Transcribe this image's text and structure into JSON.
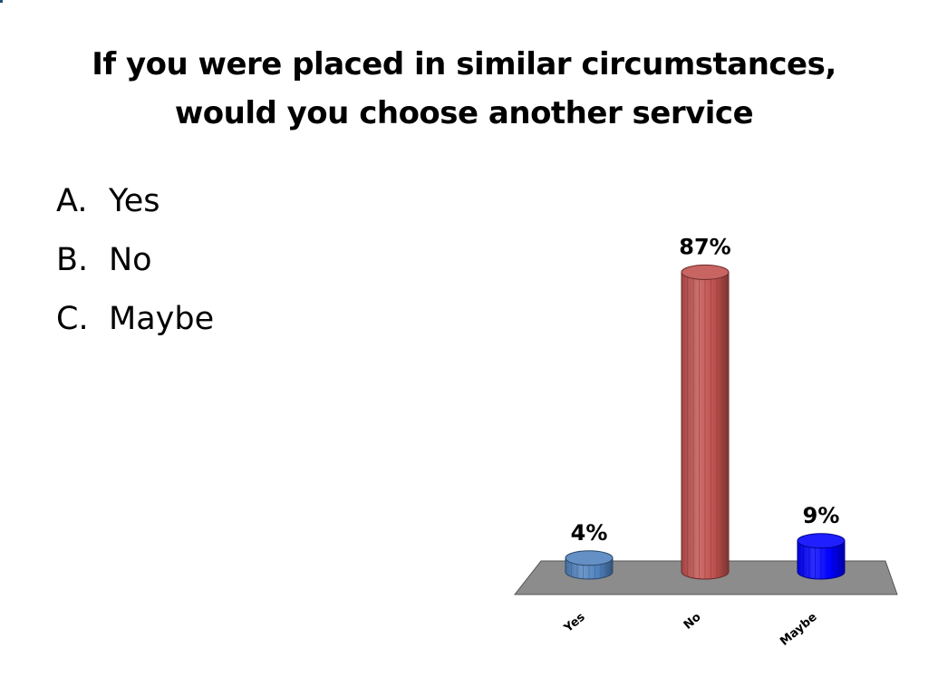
{
  "slide": {
    "title_line1": "If you were placed in similar circumstances,",
    "title_line2": "would you choose another service"
  },
  "options": [
    {
      "letter": "A.",
      "text": "Yes"
    },
    {
      "letter": "B.",
      "text": "No"
    },
    {
      "letter": "C.",
      "text": "Maybe"
    }
  ],
  "chart_data": {
    "type": "bar",
    "categories": [
      "Yes",
      "No",
      "Maybe"
    ],
    "values": [
      4,
      87,
      9
    ],
    "data_labels": [
      "4%",
      "87%",
      "9%"
    ],
    "colors": [
      "#4f81bd",
      "#c0504d",
      "#0000ff"
    ],
    "floor_color": "#8c8c8c",
    "title": "",
    "xlabel": "",
    "ylabel": "",
    "ylim": [
      0,
      100
    ],
    "grid": false
  }
}
